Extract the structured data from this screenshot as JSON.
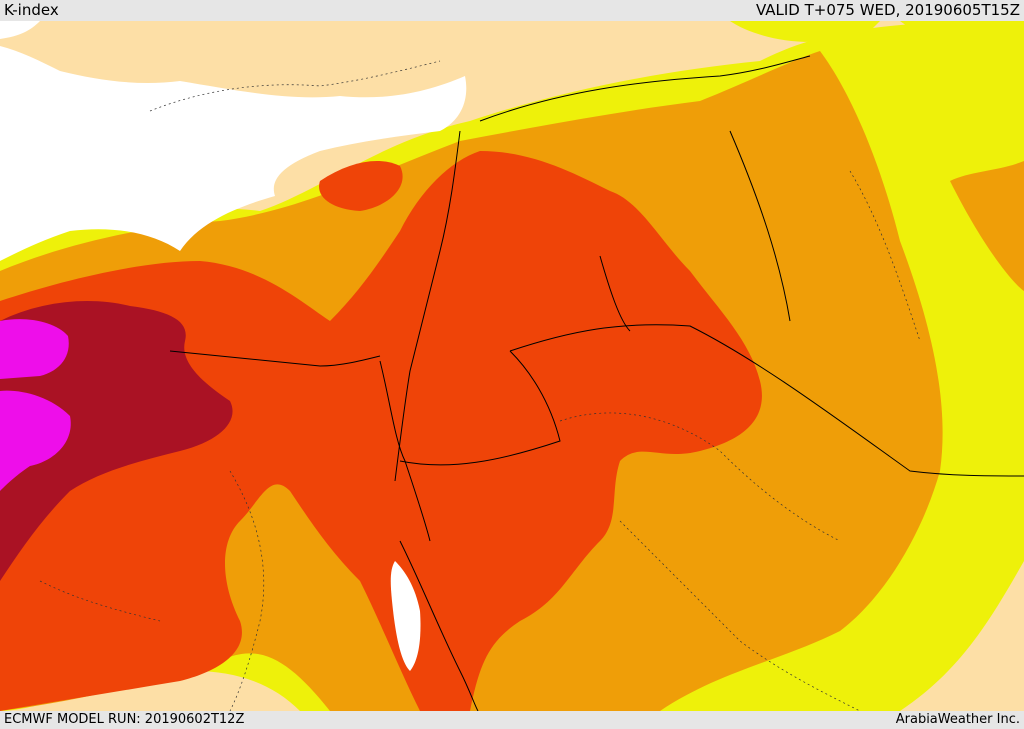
{
  "header": {
    "title": "K-index",
    "valid": "VALID T+075 WED, 20190605T15Z"
  },
  "footer": {
    "model_run": "ECMWF MODEL RUN: 20190602T12Z",
    "credit": "ArabiaWeather Inc."
  },
  "colors": {
    "water": "#ffffff",
    "land_low": "#fddfa6",
    "band_yellow": "#eef10a",
    "band_orange": "#ef9e08",
    "band_red_orange": "#ef4408",
    "band_dark_red": "#aa1224",
    "band_magenta": "#ee0eea",
    "border": "#000000"
  }
}
